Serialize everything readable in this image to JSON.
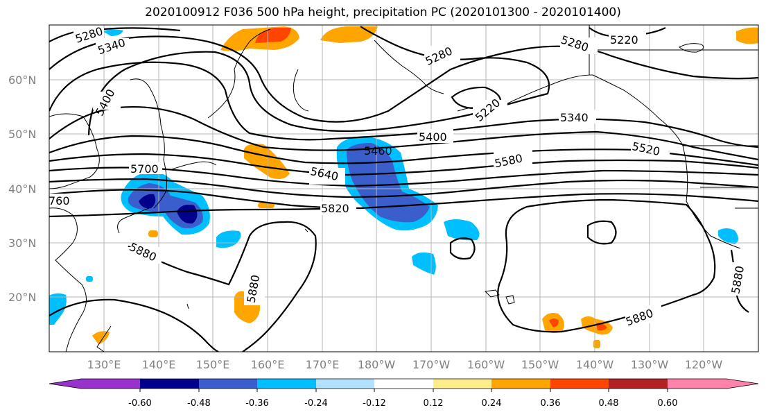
{
  "title": "2020100912 F036 500 hPa height, precipitation PC (2020101300 - 2020101400)",
  "lat_labels": [
    "60°N",
    "50°N",
    "40°N",
    "30°N",
    "20°N"
  ],
  "lon_labels": [
    "130°E",
    "140°E",
    "150°E",
    "160°E",
    "170°E",
    "180°W",
    "170°W",
    "160°W",
    "150°W",
    "140°W",
    "130°W",
    "120°W"
  ],
  "colorbar": {
    "ticks": [
      "-0.60",
      "-0.48",
      "-0.36",
      "-0.24",
      "-0.12",
      "0.12",
      "0.24",
      "0.36",
      "0.48",
      "0.60"
    ],
    "colors": [
      "#9932cc",
      "#00008b",
      "#3a5fcd",
      "#00bfff",
      "#b0e2ff",
      "#ffffff",
      "#ffec8b",
      "#ffa500",
      "#ff4500",
      "#b22222",
      "#ff82ab"
    ]
  },
  "contour_labels": {
    "c5280a": "5280",
    "c5340a": "5340",
    "c5400a": "5400",
    "c5700": "5700",
    "c760": "760",
    "c5880a": "5880",
    "c5880b": "5880",
    "c5640": "5640",
    "c5820": "5820",
    "c5460": "5460",
    "c5400b": "5400",
    "c5280b": "5280",
    "c5220a": "5220",
    "c5340b": "5340",
    "c5280c": "5280",
    "c5220b": "5220",
    "c5520": "5520",
    "c5580": "5580",
    "c5880c": "5880",
    "c5880d": "5880"
  }
}
